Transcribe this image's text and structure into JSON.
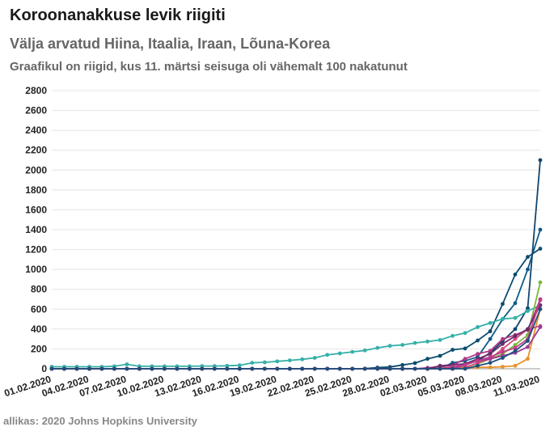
{
  "header": {
    "title": "Koroonanakkuse levik riigiti",
    "subtitle": "Välja arvatud Hiina, Itaalia, Iraan, Lõuna-Korea",
    "note": "Graafikul on riigid, kus 11. märtsi seisuga oli vähemalt 100 nakatunut"
  },
  "footer": {
    "source": "allikas: 2020 Johns Hopkins University"
  },
  "chart_data": {
    "type": "line",
    "title": "Koroonanakkuse levik riigiti",
    "xlabel": "",
    "ylabel": "",
    "ylim": [
      0,
      2800
    ],
    "yticks": [
      0,
      200,
      400,
      600,
      800,
      1000,
      1200,
      1400,
      1600,
      1800,
      2000,
      2200,
      2400,
      2600,
      2800
    ],
    "grid": true,
    "legend": "none",
    "x": [
      "01.02.2020",
      "02.02.2020",
      "03.02.2020",
      "04.02.2020",
      "05.02.2020",
      "06.02.2020",
      "07.02.2020",
      "08.02.2020",
      "09.02.2020",
      "10.02.2020",
      "11.02.2020",
      "12.02.2020",
      "13.02.2020",
      "14.02.2020",
      "15.02.2020",
      "16.02.2020",
      "17.02.2020",
      "18.02.2020",
      "19.02.2020",
      "20.02.2020",
      "21.02.2020",
      "22.02.2020",
      "23.02.2020",
      "24.02.2020",
      "25.02.2020",
      "26.02.2020",
      "27.02.2020",
      "28.02.2020",
      "29.02.2020",
      "01.03.2020",
      "02.03.2020",
      "03.03.2020",
      "04.03.2020",
      "05.03.2020",
      "06.03.2020",
      "07.03.2020",
      "08.03.2020",
      "09.03.2020",
      "10.03.2020",
      "11.03.2020"
    ],
    "xticks": [
      "01.02.2020",
      "04.02.2020",
      "07.02.2020",
      "10.02.2020",
      "13.02.2020",
      "16.02.2020",
      "19.02.2020",
      "22.02.2020",
      "25.02.2020",
      "28.02.2020",
      "02.03.2020",
      "05.03.2020",
      "08.03.2020",
      "11.03.2020"
    ],
    "series": [
      {
        "color": "#0b4c6e",
        "values": [
          0,
          0,
          0,
          0,
          0,
          0,
          0,
          0,
          0,
          0,
          0,
          0,
          0,
          0,
          0,
          0,
          0,
          0,
          0,
          0,
          0,
          0,
          0,
          0,
          0,
          2,
          12,
          18,
          38,
          57,
          100,
          130,
          191,
          204,
          285,
          377,
          653,
          949,
          1126,
          1209
        ]
      },
      {
        "color": "#0f5a8a",
        "values": [
          0,
          0,
          0,
          0,
          0,
          0,
          0,
          0,
          0,
          0,
          0,
          0,
          0,
          0,
          0,
          0,
          0,
          0,
          0,
          0,
          0,
          0,
          0,
          0,
          0,
          0,
          1,
          0,
          2,
          0,
          0,
          2,
          60,
          80,
          120,
          300,
          500,
          660,
          1000,
          1400
        ]
      },
      {
        "color": "#12466e",
        "values": [
          0,
          0,
          0,
          0,
          0,
          0,
          0,
          0,
          0,
          0,
          0,
          0,
          0,
          0,
          0,
          0,
          0,
          0,
          0,
          0,
          0,
          0,
          0,
          0,
          0,
          0,
          0,
          0,
          0,
          0,
          0,
          0,
          0,
          40,
          80,
          160,
          280,
          400,
          610,
          2100
        ]
      },
      {
        "color": "#35b0a8",
        "values": [
          20,
          20,
          20,
          20,
          20,
          25,
          45,
          25,
          25,
          25,
          25,
          25,
          28,
          28,
          30,
          35,
          60,
          65,
          75,
          85,
          95,
          110,
          140,
          155,
          170,
          185,
          210,
          230,
          240,
          260,
          274,
          290,
          331,
          360,
          420,
          461,
          502,
          511,
          581,
          639
        ]
      },
      {
        "color": "#7bb83c",
        "values": [
          0,
          0,
          0,
          0,
          0,
          0,
          0,
          0,
          0,
          0,
          0,
          0,
          0,
          0,
          0,
          0,
          0,
          0,
          0,
          0,
          0,
          0,
          0,
          0,
          0,
          0,
          0,
          0,
          0,
          0,
          0,
          8,
          10,
          20,
          50,
          100,
          150,
          240,
          340,
          870
        ]
      },
      {
        "color": "#e8912b",
        "values": [
          0,
          0,
          0,
          0,
          0,
          0,
          0,
          0,
          0,
          0,
          0,
          0,
          0,
          0,
          0,
          0,
          0,
          0,
          0,
          0,
          0,
          0,
          0,
          0,
          0,
          0,
          0,
          0,
          0,
          0,
          0,
          0,
          5,
          10,
          15,
          15,
          20,
          30,
          100,
          600
        ]
      },
      {
        "color": "#b23a86",
        "values": [
          0,
          0,
          0,
          0,
          0,
          0,
          0,
          0,
          0,
          0,
          0,
          0,
          0,
          0,
          0,
          0,
          0,
          0,
          0,
          0,
          0,
          0,
          0,
          0,
          0,
          0,
          0,
          0,
          0,
          0,
          10,
          20,
          35,
          100,
          150,
          180,
          300,
          340,
          390,
          700
        ]
      },
      {
        "color": "#d04a7a",
        "values": [
          0,
          0,
          0,
          0,
          0,
          0,
          0,
          0,
          0,
          0,
          0,
          0,
          0,
          0,
          0,
          0,
          0,
          0,
          0,
          0,
          0,
          0,
          0,
          0,
          0,
          0,
          0,
          0,
          0,
          0,
          0,
          0,
          0,
          10,
          60,
          100,
          200,
          300,
          400,
          430
        ]
      },
      {
        "color": "#9b3d96",
        "values": [
          0,
          0,
          0,
          0,
          0,
          0,
          0,
          0,
          0,
          0,
          0,
          0,
          0,
          0,
          0,
          0,
          0,
          0,
          0,
          0,
          0,
          0,
          0,
          0,
          0,
          0,
          0,
          0,
          0,
          0,
          0,
          0,
          0,
          40,
          80,
          100,
          130,
          160,
          220,
          420
        ]
      },
      {
        "color": "#6a2a6a",
        "values": [
          0,
          0,
          0,
          0,
          0,
          0,
          0,
          0,
          0,
          0,
          0,
          0,
          0,
          0,
          0,
          0,
          0,
          0,
          0,
          0,
          0,
          0,
          0,
          0,
          0,
          0,
          0,
          0,
          0,
          0,
          0,
          30,
          40,
          50,
          100,
          150,
          250,
          330,
          400,
          640
        ]
      },
      {
        "color": "#c23b8a",
        "values": [
          0,
          0,
          0,
          0,
          0,
          0,
          0,
          0,
          0,
          0,
          0,
          0,
          0,
          0,
          0,
          0,
          0,
          0,
          0,
          0,
          0,
          0,
          0,
          0,
          0,
          0,
          0,
          0,
          0,
          0,
          0,
          0,
          20,
          40,
          80,
          120,
          170,
          210,
          300,
          690
        ]
      },
      {
        "color": "#1e4f7a",
        "values": [
          0,
          0,
          0,
          0,
          0,
          0,
          0,
          0,
          0,
          0,
          0,
          0,
          0,
          0,
          0,
          0,
          0,
          0,
          0,
          0,
          0,
          0,
          0,
          0,
          0,
          0,
          0,
          0,
          0,
          0,
          0,
          0,
          0,
          0,
          30,
          60,
          110,
          180,
          280,
          600
        ]
      }
    ]
  }
}
